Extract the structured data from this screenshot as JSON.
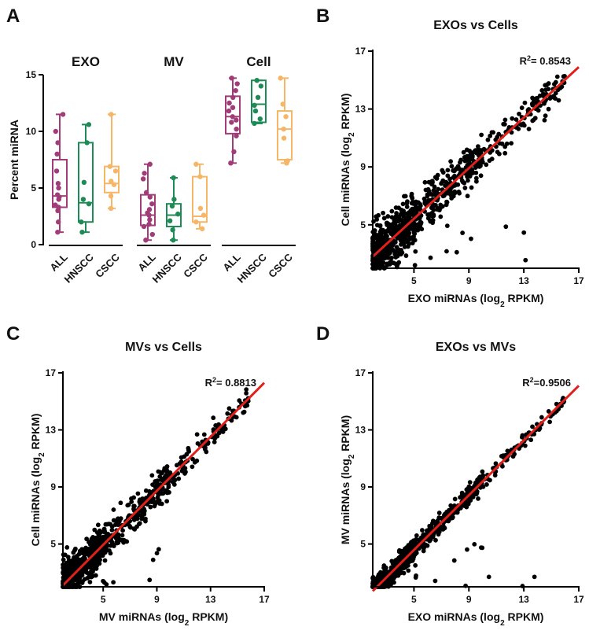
{
  "panels": {
    "a": "A",
    "b": "B",
    "c": "C",
    "d": "D"
  },
  "colors": {
    "all": "#A03C78",
    "hnscc": "#1E8A55",
    "cscc": "#F5B667",
    "fit": "#E0201B",
    "point": "#000000"
  },
  "chart_data": [
    {
      "id": "A",
      "type": "box",
      "title": "",
      "ylabel": "Percent miRNA",
      "ylim": [
        0,
        15
      ],
      "yticks": [
        0,
        5,
        10,
        15
      ],
      "groups": [
        {
          "label": "EXO",
          "boxes": [
            {
              "category": "ALL",
              "color_key": "all",
              "min": 1.1,
              "q1": 3.3,
              "median": 4.3,
              "q3": 7.5,
              "max": 11.5,
              "points": [
                1.1,
                2.0,
                3.0,
                3.3,
                3.5,
                4.0,
                4.2,
                4.4,
                5.0,
                5.4,
                6.5,
                8.0,
                9.0,
                10.0,
                11.5
              ]
            },
            {
              "category": "HNSCC",
              "color_key": "hnscc",
              "min": 1.1,
              "q1": 2.0,
              "median": 3.7,
              "q3": 9.0,
              "max": 10.6,
              "points": [
                1.1,
                2.0,
                3.6,
                4.0,
                5.5,
                9.0,
                10.6
              ]
            },
            {
              "category": "CSCC",
              "color_key": "cscc",
              "min": 3.2,
              "q1": 4.6,
              "median": 5.4,
              "q3": 6.9,
              "max": 11.5,
              "points": [
                3.2,
                4.3,
                5.3,
                5.6,
                6.5,
                6.9,
                11.5
              ]
            }
          ]
        },
        {
          "label": "MV",
          "boxes": [
            {
              "category": "ALL",
              "color_key": "all",
              "min": 0.4,
              "q1": 1.7,
              "median": 2.6,
              "q3": 4.4,
              "max": 7.1,
              "points": [
                0.4,
                0.9,
                1.6,
                1.8,
                2.2,
                2.6,
                2.8,
                3.1,
                3.6,
                4.2,
                4.6,
                5.8,
                6.3,
                7.1
              ]
            },
            {
              "category": "HNSCC",
              "color_key": "hnscc",
              "min": 0.4,
              "q1": 1.6,
              "median": 2.6,
              "q3": 3.6,
              "max": 5.9,
              "points": [
                0.4,
                1.3,
                2.1,
                2.7,
                3.4,
                4.0,
                5.9
              ]
            },
            {
              "category": "CSCC",
              "color_key": "cscc",
              "min": 1.4,
              "q1": 2.0,
              "median": 2.5,
              "q3": 6.0,
              "max": 7.1,
              "points": [
                1.4,
                2.0,
                2.6,
                3.2,
                6.0,
                7.1
              ]
            }
          ]
        },
        {
          "label": "Cell",
          "boxes": [
            {
              "category": "ALL",
              "color_key": "all",
              "min": 7.2,
              "q1": 9.8,
              "median": 11.3,
              "q3": 13.1,
              "max": 14.7,
              "points": [
                7.2,
                8.2,
                9.6,
                10.2,
                10.8,
                11.0,
                11.3,
                11.8,
                12.1,
                12.5,
                13.0,
                13.6,
                14.2,
                14.7
              ]
            },
            {
              "category": "HNSCC",
              "color_key": "hnscc",
              "min": 10.7,
              "q1": 10.8,
              "median": 12.4,
              "q3": 14.5,
              "max": 14.5,
              "points": [
                10.7,
                11.1,
                11.8,
                12.3,
                13.0,
                14.0,
                14.5
              ]
            },
            {
              "category": "CSCC",
              "color_key": "cscc",
              "min": 7.2,
              "q1": 7.5,
              "median": 10.2,
              "q3": 11.8,
              "max": 14.7,
              "points": [
                7.2,
                7.4,
                9.4,
                10.2,
                11.3,
                12.4,
                14.7
              ]
            }
          ]
        }
      ]
    },
    {
      "id": "B",
      "type": "scatter",
      "title": "EXOs vs Cells",
      "xlabel": "EXO miRNAs (log2 RPKM)",
      "ylabel": "Cell miRNAs (log2 RPKM)",
      "xlim": [
        2,
        17
      ],
      "ylim": [
        2,
        17
      ],
      "xticks": [
        5,
        9,
        13,
        17
      ],
      "yticks": [
        5,
        9,
        13,
        17
      ],
      "r2_prefix": "R",
      "r2_value": "= 0.8543",
      "fit": {
        "x0": 2.0,
        "y0": 2.8,
        "x1": 17.0,
        "y1": 15.9
      },
      "n_points": 820,
      "scatter_spread": 1.25,
      "seed": 11
    },
    {
      "id": "C",
      "type": "scatter",
      "title": "MVs vs Cells",
      "xlabel": "MV miRNAs (log2 RPKM)",
      "ylabel": "Cell miRNAs (log2 RPKM)",
      "xlim": [
        2,
        17
      ],
      "ylim": [
        2,
        17
      ],
      "xticks": [
        5,
        9,
        13,
        17
      ],
      "yticks": [
        5,
        9,
        13,
        17
      ],
      "r2_prefix": "R",
      "r2_value": "= 0.8813",
      "fit": {
        "x0": 2.0,
        "y0": 2.1,
        "x1": 17.0,
        "y1": 16.3
      },
      "n_points": 820,
      "scatter_spread": 1.05,
      "seed": 23
    },
    {
      "id": "D",
      "type": "scatter",
      "title": "EXOs vs MVs",
      "xlabel": "EXO miRNAs (log2 RPKM)",
      "ylabel": "MV miRNAs (log2 RPKM)",
      "xlim": [
        2,
        17
      ],
      "ylim": [
        2,
        17
      ],
      "xticks": [
        5,
        9,
        13,
        17
      ],
      "yticks": [
        5,
        9,
        13,
        17
      ],
      "r2_prefix": "R",
      "r2_value": "=0.9506",
      "fit": {
        "x0": 2.0,
        "y0": 1.7,
        "x1": 17.0,
        "y1": 16.1
      },
      "n_points": 800,
      "scatter_spread": 0.55,
      "seed": 37
    }
  ]
}
